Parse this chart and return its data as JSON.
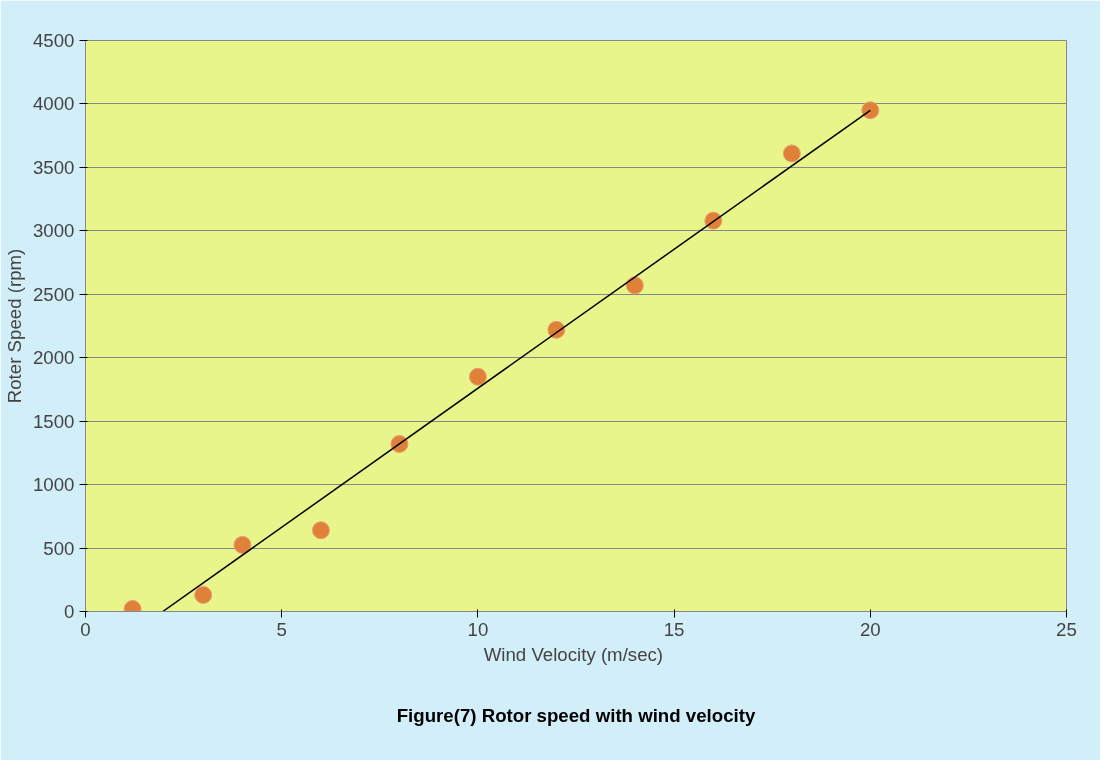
{
  "chart_data": {
    "type": "scatter",
    "title": "Figure(7) Rotor speed with wind velocity",
    "xlabel": "Wind Velocity  (m/sec)",
    "ylabel": "Roter Speed (rpm)",
    "xlim": [
      0,
      25
    ],
    "xticks": [
      0,
      5,
      10,
      15,
      20,
      25
    ],
    "ylim": [
      0,
      4500
    ],
    "yticks": [
      0,
      500,
      1000,
      1500,
      2000,
      2500,
      3000,
      3500,
      4000,
      4500
    ],
    "grid": "y",
    "marker": "circle",
    "series": [
      {
        "color": "#e0813a",
        "x": [
          1.2,
          3,
          4,
          6,
          8,
          10,
          12,
          14,
          16,
          18,
          20
        ],
        "values": [
          20,
          130,
          525,
          640,
          1320,
          1850,
          2220,
          2570,
          3080,
          3610,
          3950
        ]
      },
      {
        "type": "line",
        "color": "#000000",
        "marker": "none",
        "x": [
          1.97,
          20
        ],
        "values": [
          0,
          3950
        ]
      }
    ]
  }
}
